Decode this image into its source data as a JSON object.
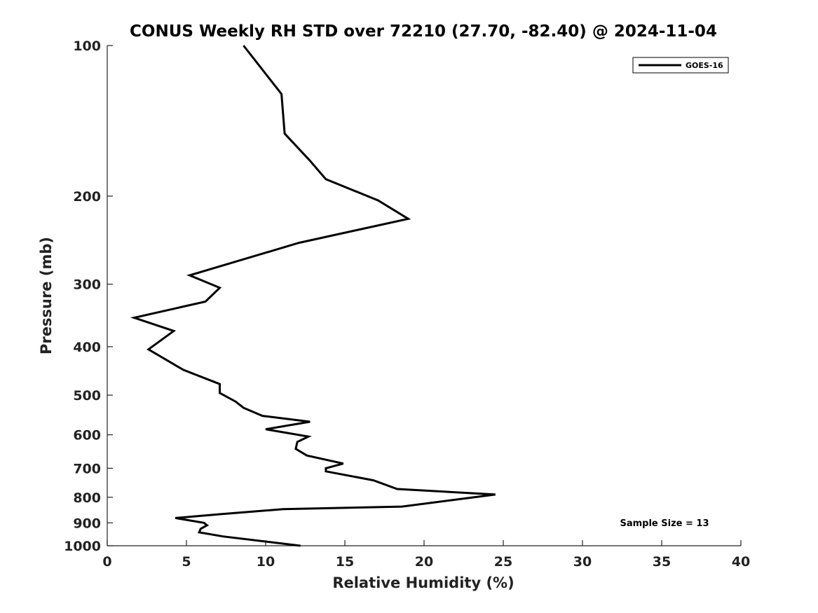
{
  "chart_data": {
    "type": "line",
    "title": "CONUS Weekly RH STD over 72210 (27.70, -82.40) @ 2024-11-04",
    "xlabel": "Relative Humidity (%)",
    "ylabel": "Pressure (mb)",
    "xlim": [
      0,
      40
    ],
    "ylim": [
      100,
      1000
    ],
    "y_scale": "log",
    "y_reversed": true,
    "grid": false,
    "x_ticks": [
      "0",
      "5",
      "10",
      "15",
      "20",
      "25",
      "30",
      "35",
      "40"
    ],
    "y_ticks": [
      "100",
      "200",
      "300",
      "400",
      "500",
      "600",
      "700",
      "800",
      "900",
      "1000"
    ],
    "legend": {
      "placement": "top-right",
      "entries": [
        "GOES-16"
      ]
    },
    "annotation": "Sample Size = 13",
    "series": [
      {
        "name": "GOES-16",
        "color": "#000000",
        "x": [
          8.6,
          11.0,
          11.2,
          12.8,
          13.8,
          17.1,
          19.0,
          12.1,
          5.2,
          7.1,
          6.2,
          1.7,
          4.2,
          2.6,
          4.8,
          7.1,
          7.1,
          8.1,
          8.6,
          9.8,
          12.8,
          10.0,
          12.7,
          12.0,
          11.9,
          12.6,
          14.9,
          13.8,
          13.8,
          16.8,
          18.3,
          24.5,
          21.8,
          18.6,
          11.1,
          7.1,
          4.3,
          6.1,
          6.3,
          5.9,
          5.8,
          7.3,
          12.2
        ],
        "y": [
          100,
          125,
          150,
          170,
          185,
          204,
          222,
          248,
          288,
          305,
          325,
          350,
          372,
          405,
          445,
          475,
          495,
          515,
          530,
          550,
          565,
          585,
          605,
          620,
          640,
          660,
          685,
          700,
          710,
          740,
          770,
          790,
          810,
          835,
          845,
          865,
          880,
          900,
          910,
          925,
          940,
          958,
          1000
        ]
      }
    ]
  }
}
